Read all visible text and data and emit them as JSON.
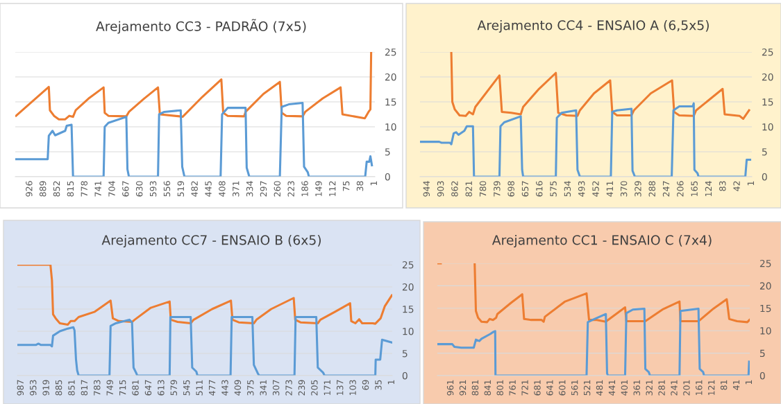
{
  "chart_data": [
    {
      "type": "line",
      "title": "Arejamento CC3 - PADRÃO (7x5)",
      "xlim": [
        965,
        0
      ],
      "ylim": [
        0,
        25
      ],
      "yticks": [
        0,
        5,
        10,
        15,
        20,
        25
      ],
      "grid": "y",
      "xticks": [
        926,
        889,
        852,
        815,
        778,
        741,
        704,
        667,
        630,
        593,
        556,
        519,
        482,
        445,
        408,
        371,
        334,
        297,
        260,
        223,
        186,
        149,
        112,
        75,
        38,
        1
      ],
      "series": [
        {
          "color": "#ed7d31",
          "x": [
            963,
            875,
            872,
            861,
            848,
            831,
            820,
            810,
            803,
            766,
            728,
            725,
            715,
            667,
            660,
            620,
            582,
            577,
            524,
            516,
            463,
            412,
            407,
            395,
            351,
            347,
            299,
            255,
            250,
            238,
            194,
            187,
            140,
            92,
            87,
            27,
            17,
            12,
            10
          ],
          "values": [
            12.2,
            18.0,
            13.3,
            12.2,
            11.5,
            11.5,
            12.2,
            12.0,
            13.3,
            15.8,
            17.9,
            12.8,
            12.2,
            12.1,
            13.0,
            15.6,
            17.9,
            12.5,
            12.1,
            12.0,
            16.0,
            19.5,
            12.8,
            12.2,
            12.1,
            13.0,
            16.6,
            19.0,
            12.8,
            12.2,
            12.1,
            13.0,
            15.7,
            17.9,
            12.5,
            11.7,
            13.0,
            13.5,
            25
          ]
        },
        {
          "color": "#5b9bd5",
          "x": [
            963,
            878,
            875,
            865,
            858,
            831,
            827,
            814,
            810,
            728,
            725,
            715,
            667,
            664,
            660,
            582,
            579,
            565,
            521,
            517,
            511,
            414,
            410,
            395,
            347,
            344,
            337,
            255,
            250,
            231,
            194,
            190,
            180,
            177,
            26,
            22,
            15,
            12,
            8
          ],
          "values": [
            3.5,
            3.5,
            8.2,
            9.2,
            8.3,
            9.2,
            10.2,
            10.4,
            0,
            0,
            10.0,
            10.8,
            12.0,
            1.5,
            0,
            0,
            12.5,
            13.0,
            13.3,
            2.0,
            0,
            0,
            12.5,
            13.8,
            13.8,
            1.8,
            0,
            0,
            14.0,
            14.5,
            14.8,
            2.0,
            0.9,
            0,
            0,
            3.0,
            3.0,
            4.1,
            2.3
          ]
        }
      ]
    },
    {
      "type": "line",
      "title": "Arejamento CC4 - ENSAIO A (6,5x5)",
      "xlim": [
        965,
        0
      ],
      "ylim": [
        0,
        25
      ],
      "yticks": [
        0,
        5,
        10,
        15,
        20,
        25
      ],
      "grid": "y",
      "xticks": [
        944,
        903,
        862,
        821,
        780,
        739,
        698,
        657,
        616,
        575,
        534,
        493,
        452,
        411,
        370,
        329,
        288,
        247,
        206,
        165,
        124,
        83,
        42,
        1
      ],
      "series": [
        {
          "color": "#ed7d31",
          "x": [
            874,
            871,
            864,
            850,
            832,
            822,
            811,
            804,
            734,
            727,
            700,
            672,
            665,
            619,
            570,
            563,
            539,
            507,
            500,
            459,
            412,
            406,
            392,
            350,
            343,
            294,
            232,
            226,
            211,
            169,
            162,
            85,
            79,
            36,
            25,
            8
          ],
          "values": [
            25,
            15.0,
            13.5,
            12.3,
            12.2,
            13.0,
            12.5,
            14.0,
            20.3,
            13.0,
            12.8,
            12.5,
            14.0,
            17.6,
            20.8,
            12.8,
            12.3,
            12.2,
            13.3,
            16.7,
            19.3,
            13.0,
            12.3,
            12.3,
            13.3,
            16.7,
            19.3,
            13.0,
            12.3,
            12.2,
            13.3,
            17.6,
            12.5,
            12.2,
            11.6,
            13.3
          ]
        },
        {
          "color": "#5b9bd5",
          "x": [
            965,
            909,
            902,
            878,
            874,
            867,
            860,
            853,
            836,
            829,
            811,
            808,
            734,
            731,
            720,
            672,
            668,
            665,
            570,
            567,
            553,
            511,
            507,
            500,
            410,
            406,
            392,
            350,
            347,
            340,
            233,
            228,
            211,
            172,
            169,
            167,
            158,
            155,
            19,
            15,
            5
          ],
          "values": [
            7.0,
            7.0,
            6.8,
            6.8,
            6.5,
            8.7,
            8.9,
            8.4,
            9.2,
            10.1,
            10.1,
            0,
            0,
            10.1,
            10.9,
            12.1,
            1.4,
            0,
            0,
            11.8,
            12.8,
            13.3,
            1.4,
            0,
            0,
            13.0,
            13.3,
            13.6,
            1.2,
            0,
            0,
            13.3,
            14.1,
            14.1,
            14.7,
            1.4,
            0.7,
            0,
            0,
            3.4,
            3.4
          ]
        }
      ]
    },
    {
      "type": "line",
      "title": "Arejamento CC7 - ENSAIO B (6x5)",
      "xlim": [
        997,
        0
      ],
      "ylim": [
        0,
        25
      ],
      "yticks": [
        0,
        5,
        10,
        15,
        20,
        25
      ],
      "grid": "y",
      "xticks": [
        987,
        953,
        919,
        885,
        851,
        817,
        783,
        749,
        715,
        681,
        647,
        613,
        579,
        545,
        511,
        477,
        443,
        409,
        375,
        341,
        307,
        273,
        239,
        205,
        171,
        137,
        103,
        69,
        35,
        1
      ],
      "series": [
        {
          "color": "#ed7d31",
          "x": [
            996,
            909,
            905,
            902,
            895,
            884,
            863,
            855,
            845,
            834,
            791,
            749,
            743,
            727,
            692,
            685,
            642,
            592,
            589,
            571,
            536,
            528,
            479,
            429,
            425,
            408,
            368,
            361,
            322,
            262,
            258,
            244,
            198,
            191,
            152,
            112,
            109,
            98,
            88,
            80,
            52,
            45,
            31,
            20,
            1
          ],
          "values": [
            25,
            25,
            21.5,
            13.8,
            12.9,
            11.8,
            11.5,
            12.3,
            12.3,
            13.2,
            14.4,
            16.9,
            12.9,
            12.3,
            12.1,
            12.6,
            15.3,
            16.7,
            12.6,
            12.1,
            11.8,
            12.6,
            15.0,
            16.9,
            12.6,
            12.0,
            11.8,
            12.6,
            15.0,
            17.5,
            12.6,
            12.0,
            11.8,
            12.6,
            14.4,
            16.3,
            12.3,
            11.8,
            12.7,
            11.8,
            11.8,
            11.7,
            12.9,
            15.6,
            18.1
          ]
        },
        {
          "color": "#5b9bd5",
          "x": [
            996,
            948,
            941,
            934,
            909,
            905,
            902,
            884,
            863,
            848,
            845,
            841,
            838,
            834,
            752,
            749,
            735,
            699,
            692,
            688,
            681,
            678,
            592,
            590,
            536,
            532,
            521,
            518,
            430,
            427,
            372,
            368,
            358,
            354,
            260,
            257,
            202,
            198,
            184,
            180,
            45,
            44,
            32,
            27,
            2
          ],
          "values": [
            6.9,
            6.9,
            7.2,
            6.9,
            6.9,
            6.6,
            9.0,
            10.0,
            10.6,
            10.9,
            10.2,
            3.6,
            1.2,
            0,
            0,
            11.2,
            11.8,
            12.6,
            12.0,
            1.8,
            0.6,
            0,
            0,
            13.2,
            13.2,
            1.8,
            0.9,
            0,
            0,
            13.2,
            13.2,
            2.4,
            0.6,
            0,
            0,
            13.2,
            13.2,
            1.8,
            0.7,
            0,
            0,
            3.6,
            3.6,
            8.1,
            7.5
          ]
        }
      ]
    },
    {
      "type": "line",
      "title": "Arejamento CC1 - ENSAIO C (7x4)",
      "xlim": [
        1005,
        0
      ],
      "ylim": [
        0,
        25
      ],
      "yticks": [
        0,
        5,
        10,
        15,
        20,
        25
      ],
      "grid": "y",
      "xticks": [
        961,
        921,
        881,
        841,
        801,
        761,
        721,
        681,
        641,
        601,
        561,
        521,
        481,
        441,
        401,
        361,
        321,
        281,
        241,
        201,
        161,
        121,
        81,
        41,
        1
      ],
      "series": [
        {
          "color": "#ed7d31",
          "x": [
            1005,
            994,
            990,
            885,
            881,
            874,
            863,
            845,
            837,
            826,
            816,
            812,
            768,
            732,
            726,
            703,
            670,
            663,
            659,
            594,
            525,
            517,
            492,
            463,
            456,
            401,
            397,
            336,
            281,
            226,
            223,
            165,
            117,
            74,
            66,
            41,
            8,
            1
          ],
          "values": [
            25,
            25,
            null,
            25,
            14.4,
            12.9,
            12.0,
            11.9,
            12.6,
            12.4,
            12.9,
            13.7,
            16.2,
            18.1,
            12.6,
            12.4,
            12.4,
            12.0,
            13.1,
            16.5,
            18.3,
            12.4,
            12.4,
            12.0,
            12.4,
            15.2,
            12.1,
            12.1,
            14.7,
            16.5,
            12.1,
            12.1,
            14.9,
            17.0,
            12.6,
            12.1,
            11.9,
            12.4
          ]
        },
        {
          "color": "#5b9bd5",
          "x": [
            1005,
            957,
            950,
            928,
            888,
            881,
            870,
            863,
            834,
            826,
            819,
            818,
            525,
            521,
            506,
            463,
            459,
            456,
            401,
            397,
            376,
            339,
            336,
            325,
            321,
            226,
            223,
            165,
            161,
            150,
            147,
            4,
            2
          ],
          "values": [
            7.0,
            7.0,
            6.4,
            6.2,
            6.2,
            8.0,
            7.7,
            8.2,
            9.3,
            9.7,
            9.9,
            0,
            0,
            11.9,
            12.4,
            13.7,
            0.5,
            0,
            0,
            13.9,
            14.7,
            14.9,
            1.5,
            0.8,
            0,
            0,
            14.4,
            14.9,
            1.5,
            0.8,
            0,
            0,
            3.1
          ]
        }
      ]
    }
  ]
}
